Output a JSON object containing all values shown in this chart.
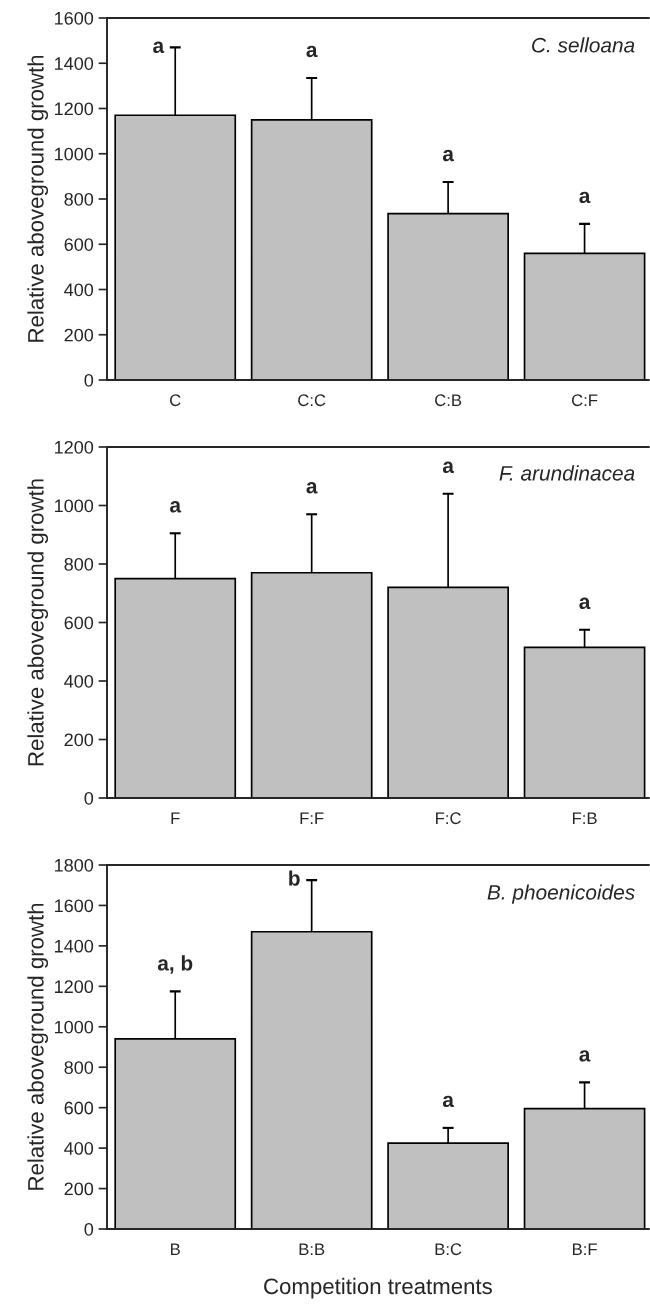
{
  "chart_data": [
    {
      "type": "bar",
      "title": "C. selloana",
      "ylabel": "Relative aboveground growth",
      "categories": [
        "C",
        "C:C",
        "C:B",
        "C:F"
      ],
      "values": [
        1170,
        1150,
        735,
        560
      ],
      "color": "#c0c0c0",
      "errors": [
        [
          1170,
          1470
        ],
        [
          1150,
          1335
        ],
        [
          735,
          875
        ],
        [
          560,
          690
        ]
      ],
      "ylim": [
        0,
        1600
      ],
      "yticks": [
        0,
        200,
        400,
        600,
        800,
        1000,
        1200,
        1400,
        1600
      ],
      "grid": false,
      "legend": false,
      "annotations": [
        {
          "text": "a",
          "x": "C",
          "y": 1470
        },
        {
          "text": "a",
          "x": "C:C",
          "y": 1335
        },
        {
          "text": "a",
          "x": "C:B",
          "y": 875
        },
        {
          "text": "a",
          "x": "C:F",
          "y": 690
        }
      ]
    },
    {
      "type": "bar",
      "title": "F. arundinacea",
      "ylabel": "Relative aboveground growth",
      "categories": [
        "F",
        "F:F",
        "F:C",
        "F:B"
      ],
      "values": [
        750,
        770,
        720,
        515
      ],
      "color": "#c0c0c0",
      "errors": [
        [
          750,
          905
        ],
        [
          770,
          970
        ],
        [
          720,
          1040
        ],
        [
          515,
          575
        ]
      ],
      "ylim": [
        0,
        1200
      ],
      "yticks": [
        0,
        200,
        400,
        600,
        800,
        1000,
        1200
      ],
      "grid": false,
      "legend": false,
      "annotations": [
        {
          "text": "a",
          "x": "F",
          "y": 905
        },
        {
          "text": "a",
          "x": "F:F",
          "y": 970
        },
        {
          "text": "a",
          "x": "F:C",
          "y": 1040
        },
        {
          "text": "a",
          "x": "F:B",
          "y": 575
        }
      ]
    },
    {
      "type": "bar",
      "title": "B. phoenicoides",
      "ylabel": "Relative aboveground growth",
      "xlabel": "Competition treatments",
      "categories": [
        "B",
        "B:B",
        "B:C",
        "B:F"
      ],
      "values": [
        940,
        1470,
        425,
        595
      ],
      "color": "#c0c0c0",
      "errors": [
        [
          940,
          1175
        ],
        [
          1470,
          1725
        ],
        [
          425,
          500
        ],
        [
          595,
          725
        ]
      ],
      "ylim": [
        0,
        1800
      ],
      "yticks": [
        0,
        200,
        400,
        600,
        800,
        1000,
        1200,
        1400,
        1600,
        1800
      ],
      "grid": false,
      "legend": false,
      "annotations": [
        {
          "text": "a, b",
          "x": "B",
          "y": 1175
        },
        {
          "text": "b",
          "x": "B:B",
          "y": 1725
        },
        {
          "text": "a",
          "x": "B:C",
          "y": 500
        },
        {
          "text": "a",
          "x": "B:F",
          "y": 725
        }
      ]
    }
  ]
}
